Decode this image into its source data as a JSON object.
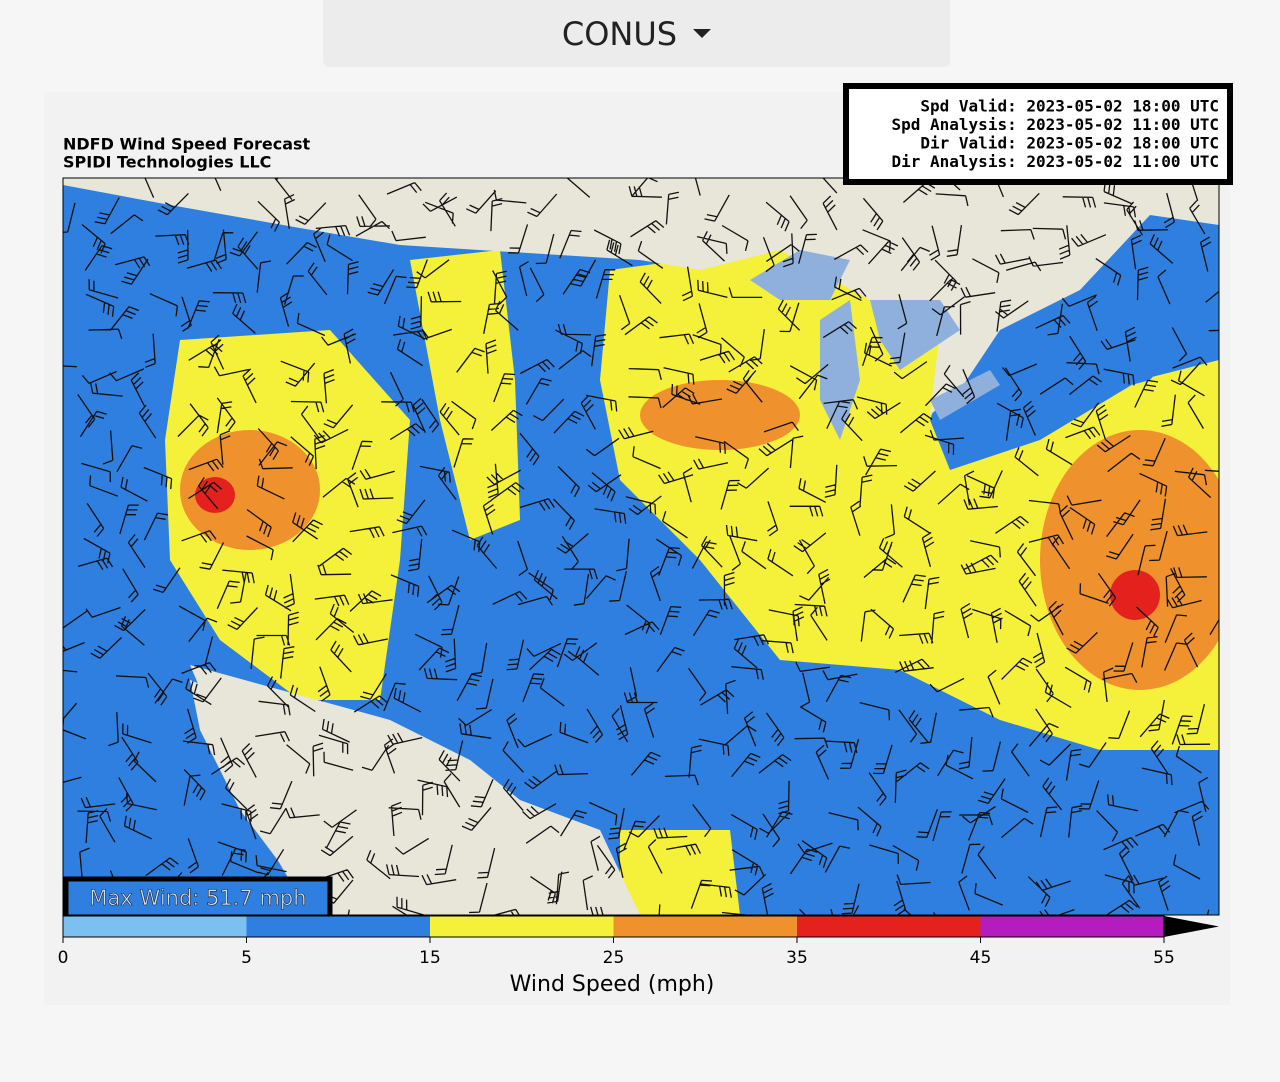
{
  "header": {
    "region": "CONUS"
  },
  "map": {
    "title": "NDFD Wind Speed Forecast",
    "credit": "SPIDI Technologies LLC",
    "times": [
      "Spd Valid: 2023-05-02 18:00 UTC",
      "Spd Analysis: 2023-05-02 11:00 UTC",
      "Dir Valid: 2023-05-02 18:00 UTC",
      "Dir Analysis: 2023-05-02 11:00 UTC"
    ],
    "max_wind": "Max Wind: 51.7 mph",
    "colorbar": {
      "label": "Wind Speed (mph)",
      "ticks": [
        0,
        5,
        15,
        25,
        35,
        45,
        55
      ],
      "colors": [
        "#7cc0f2",
        "#2f7fe0",
        "#f5f03a",
        "#ef922e",
        "#e5211e",
        "#b41cc0"
      ]
    }
  }
}
